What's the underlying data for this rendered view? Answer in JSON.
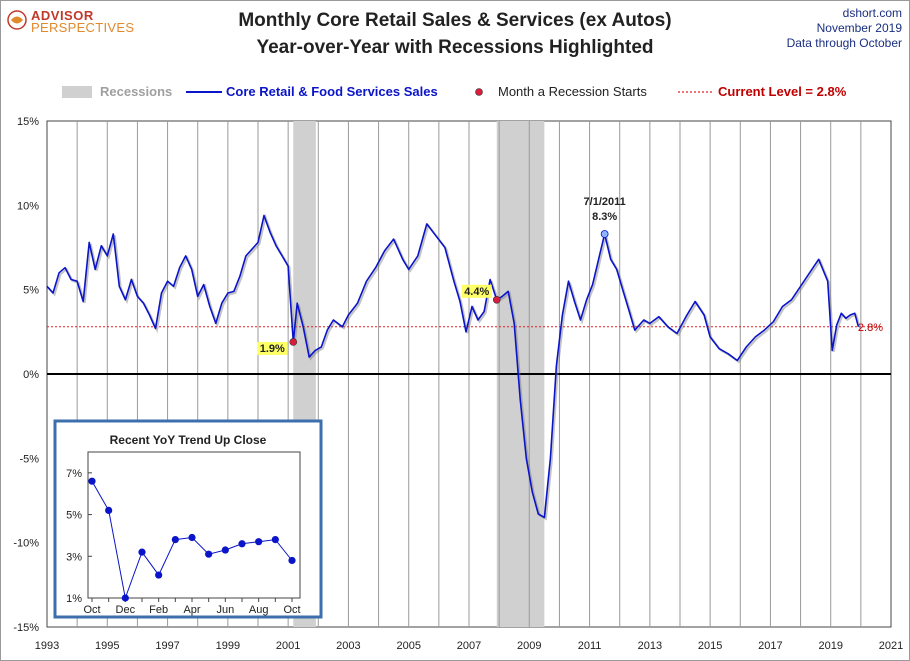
{
  "header": {
    "logo_line1": "ADVISOR",
    "logo_line2": "PERSPECTIVES",
    "title_line1": "Monthly Core Retail Sales & Services (ex Autos)",
    "title_line2": "Year-over-Year with Recessions Highlighted",
    "source": "dshort.com",
    "date": "November 2019",
    "data_through": "Data through October"
  },
  "legend": {
    "recessions": "Recessions",
    "series": "Core Retail & Food Services Sales",
    "recession_start": "Month a Recession Starts",
    "current": "Current Level = 2.8%"
  },
  "colors": {
    "series": "#0a14c8",
    "recession": "#d0d0d0",
    "recession_start_dot": "#d81e3c",
    "current_line": "#e02020",
    "peak_dot": "#8db4ff",
    "highlight_label": "#ffff66"
  },
  "chart_data": [
    {
      "type": "line",
      "series_name": "Core Retail & Food Services Sales",
      "x_range": [
        1993,
        2021
      ],
      "y_range": [
        -15,
        15
      ],
      "y_unit": "%",
      "y_ticks": [
        "15%",
        "10%",
        "5%",
        "0%",
        "-5%",
        "-10%",
        "-15%"
      ],
      "x_ticks": [
        "1993",
        "1995",
        "1997",
        "1999",
        "2001",
        "2003",
        "2005",
        "2007",
        "2009",
        "2011",
        "2013",
        "2015",
        "2017",
        "2019",
        "2021"
      ],
      "grid": "vertical",
      "recessions": [
        [
          2001.17,
          2001.92
        ],
        [
          2007.92,
          2009.5
        ]
      ],
      "current_level": 2.8,
      "current_level_label": "2.8%",
      "annotations": [
        {
          "x": 2001.17,
          "y": 1.9,
          "label": "1.9%",
          "kind": "recession_start"
        },
        {
          "x": 2007.92,
          "y": 4.4,
          "label": "4.4%",
          "kind": "recession_start"
        },
        {
          "x": 2011.5,
          "y": 8.3,
          "date": "7/1/2011",
          "label": "8.3%",
          "kind": "peak"
        }
      ],
      "points": [
        [
          1993.0,
          5.2
        ],
        [
          1993.2,
          4.8
        ],
        [
          1993.4,
          6.0
        ],
        [
          1993.6,
          6.3
        ],
        [
          1993.8,
          5.6
        ],
        [
          1994.0,
          5.5
        ],
        [
          1994.2,
          4.3
        ],
        [
          1994.4,
          7.8
        ],
        [
          1994.6,
          6.2
        ],
        [
          1994.8,
          7.6
        ],
        [
          1995.0,
          7.0
        ],
        [
          1995.2,
          8.3
        ],
        [
          1995.4,
          5.2
        ],
        [
          1995.6,
          4.4
        ],
        [
          1995.8,
          5.6
        ],
        [
          1996.0,
          4.6
        ],
        [
          1996.2,
          4.2
        ],
        [
          1996.4,
          3.5
        ],
        [
          1996.6,
          2.7
        ],
        [
          1996.8,
          4.8
        ],
        [
          1997.0,
          5.5
        ],
        [
          1997.2,
          5.2
        ],
        [
          1997.4,
          6.3
        ],
        [
          1997.6,
          7.0
        ],
        [
          1997.8,
          6.2
        ],
        [
          1998.0,
          4.6
        ],
        [
          1998.2,
          5.3
        ],
        [
          1998.4,
          4.0
        ],
        [
          1998.6,
          3.0
        ],
        [
          1998.8,
          4.2
        ],
        [
          1999.0,
          4.8
        ],
        [
          1999.2,
          4.9
        ],
        [
          1999.4,
          5.8
        ],
        [
          1999.6,
          7.0
        ],
        [
          1999.8,
          7.4
        ],
        [
          2000.0,
          7.8
        ],
        [
          2000.2,
          9.4
        ],
        [
          2000.4,
          8.4
        ],
        [
          2000.6,
          7.6
        ],
        [
          2000.8,
          7.0
        ],
        [
          2001.0,
          6.4
        ],
        [
          2001.17,
          1.9
        ],
        [
          2001.3,
          4.2
        ],
        [
          2001.5,
          2.8
        ],
        [
          2001.7,
          1.0
        ],
        [
          2001.9,
          1.4
        ],
        [
          2002.1,
          1.6
        ],
        [
          2002.3,
          2.6
        ],
        [
          2002.5,
          3.2
        ],
        [
          2002.8,
          2.8
        ],
        [
          2003.0,
          3.5
        ],
        [
          2003.3,
          4.2
        ],
        [
          2003.6,
          5.5
        ],
        [
          2003.9,
          6.3
        ],
        [
          2004.2,
          7.3
        ],
        [
          2004.5,
          8.0
        ],
        [
          2004.8,
          6.8
        ],
        [
          2005.0,
          6.2
        ],
        [
          2005.3,
          7.0
        ],
        [
          2005.6,
          8.9
        ],
        [
          2005.9,
          8.2
        ],
        [
          2006.2,
          7.5
        ],
        [
          2006.5,
          5.5
        ],
        [
          2006.7,
          4.3
        ],
        [
          2006.9,
          2.5
        ],
        [
          2007.1,
          4.0
        ],
        [
          2007.3,
          3.2
        ],
        [
          2007.5,
          3.7
        ],
        [
          2007.7,
          5.6
        ],
        [
          2007.92,
          4.4
        ],
        [
          2008.1,
          4.6
        ],
        [
          2008.3,
          4.9
        ],
        [
          2008.5,
          3.0
        ],
        [
          2008.7,
          -1.5
        ],
        [
          2008.9,
          -5.0
        ],
        [
          2009.1,
          -7.0
        ],
        [
          2009.3,
          -8.3
        ],
        [
          2009.5,
          -8.5
        ],
        [
          2009.7,
          -5.0
        ],
        [
          2009.9,
          0.5
        ],
        [
          2010.1,
          3.5
        ],
        [
          2010.3,
          5.5
        ],
        [
          2010.5,
          4.3
        ],
        [
          2010.7,
          3.2
        ],
        [
          2010.9,
          4.4
        ],
        [
          2011.1,
          5.3
        ],
        [
          2011.3,
          6.8
        ],
        [
          2011.5,
          8.3
        ],
        [
          2011.7,
          6.8
        ],
        [
          2011.9,
          6.2
        ],
        [
          2012.1,
          5.0
        ],
        [
          2012.3,
          3.8
        ],
        [
          2012.5,
          2.6
        ],
        [
          2012.8,
          3.2
        ],
        [
          2013.0,
          3.0
        ],
        [
          2013.3,
          3.4
        ],
        [
          2013.6,
          2.8
        ],
        [
          2013.9,
          2.4
        ],
        [
          2014.2,
          3.4
        ],
        [
          2014.5,
          4.3
        ],
        [
          2014.8,
          3.5
        ],
        [
          2015.0,
          2.2
        ],
        [
          2015.3,
          1.5
        ],
        [
          2015.6,
          1.2
        ],
        [
          2015.9,
          0.8
        ],
        [
          2016.2,
          1.6
        ],
        [
          2016.5,
          2.2
        ],
        [
          2016.8,
          2.6
        ],
        [
          2017.1,
          3.1
        ],
        [
          2017.4,
          4.0
        ],
        [
          2017.7,
          4.4
        ],
        [
          2018.0,
          5.2
        ],
        [
          2018.3,
          6.0
        ],
        [
          2018.6,
          6.8
        ],
        [
          2018.9,
          5.5
        ],
        [
          2019.05,
          1.4
        ],
        [
          2019.2,
          2.9
        ],
        [
          2019.35,
          3.6
        ],
        [
          2019.5,
          3.3
        ],
        [
          2019.65,
          3.5
        ],
        [
          2019.8,
          3.6
        ],
        [
          2019.92,
          2.8
        ]
      ]
    },
    {
      "type": "line",
      "title": "Recent  YoY Trend Up Close",
      "categories": [
        "Oct",
        "Nov",
        "Dec",
        "Jan",
        "Feb",
        "Mar",
        "Apr",
        "May",
        "Jun",
        "Jul",
        "Aug",
        "Sep",
        "Oct"
      ],
      "x_tick_labels": [
        "Oct",
        "Dec",
        "Feb",
        "Apr",
        "Jun",
        "Aug",
        "Oct"
      ],
      "y_ticks": [
        "7%",
        "5%",
        "3%",
        "1%"
      ],
      "y_range": [
        1,
        8
      ],
      "values": [
        6.6,
        5.2,
        1.0,
        3.2,
        2.1,
        3.8,
        3.9,
        3.1,
        3.3,
        3.6,
        3.7,
        3.8,
        2.8
      ]
    }
  ]
}
